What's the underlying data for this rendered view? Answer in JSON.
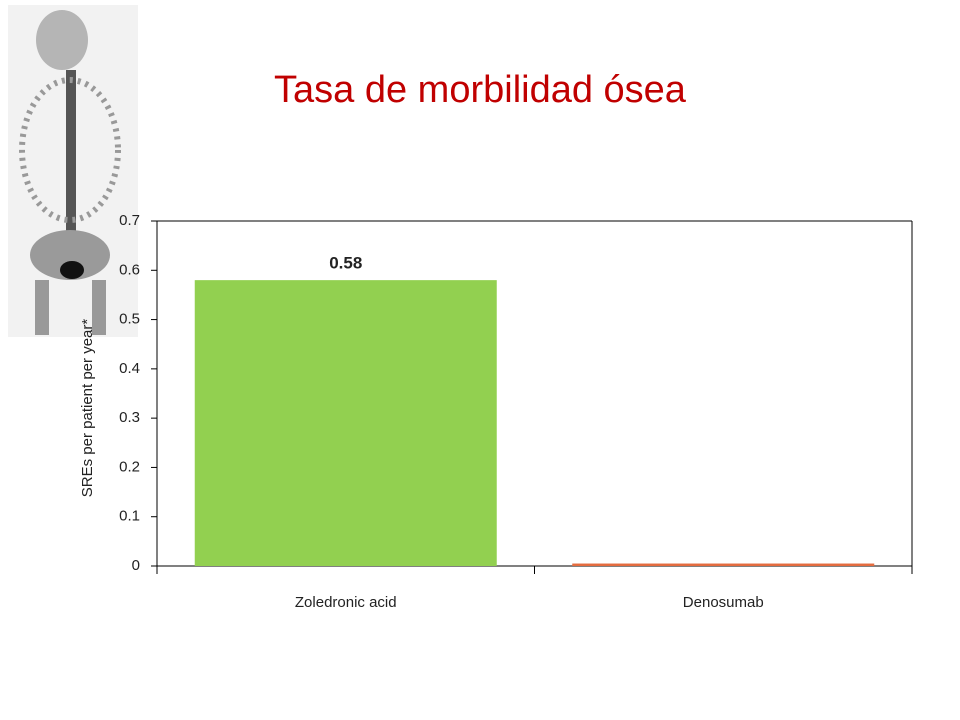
{
  "chart_data": {
    "type": "bar",
    "title": "Tasa de morbilidad ósea",
    "y_label": "SREs per patient per year*",
    "categories": [
      "Zoledronic acid",
      "Denosumab"
    ],
    "values": [
      0.58,
      0.005
    ],
    "value_labels": [
      "0.58",
      null
    ],
    "colors": [
      "#92d050",
      "#e46c3f"
    ],
    "ylim": [
      0,
      0.7
    ],
    "yticks": [
      0,
      0.1,
      0.2,
      0.3,
      0.4,
      0.5,
      0.6,
      0.7
    ],
    "grid": false
  }
}
